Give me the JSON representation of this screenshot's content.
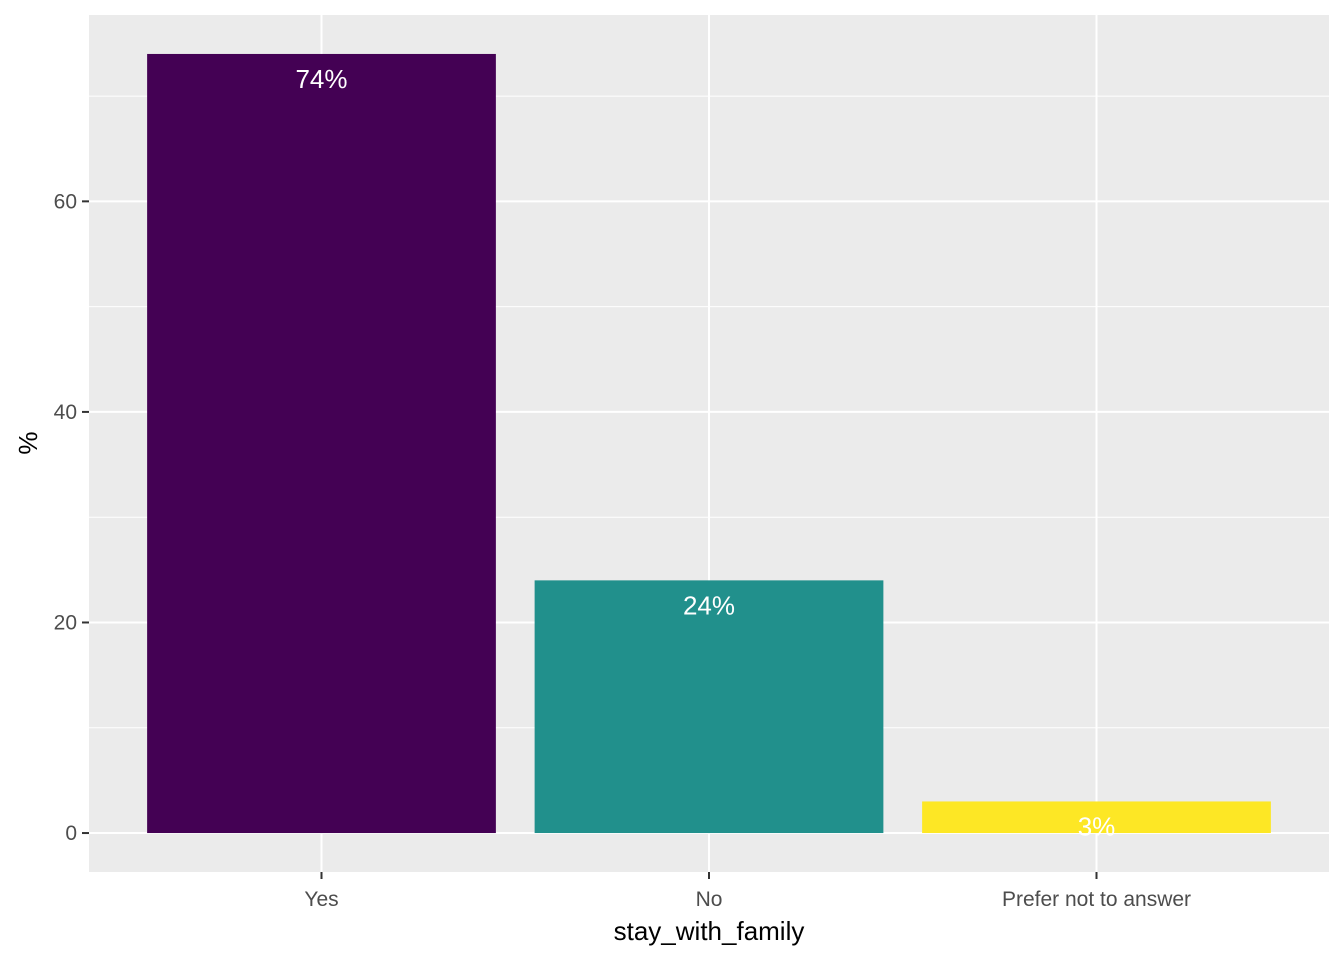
{
  "chart_data": {
    "type": "bar",
    "categories": [
      "Yes",
      "No",
      "Prefer not to answer"
    ],
    "values": [
      74,
      24,
      3
    ],
    "value_labels": [
      "74%",
      "24%",
      "3%"
    ],
    "colors": [
      "#440154",
      "#21908C",
      "#FDE725"
    ],
    "xlabel": "stay_with_family",
    "ylabel": "%",
    "ylim": [
      -3.7,
      77.7
    ],
    "y_ticks": [
      0,
      20,
      40,
      60
    ],
    "y_tick_labels": [
      "0",
      "20",
      "40",
      "60"
    ],
    "grid": true,
    "legend": "none",
    "panel_background": "#EBEBEB",
    "gridline_color": "#FFFFFF",
    "tick_color": "#333333",
    "tick_label_color": "#4D4D4D",
    "axis_title_color": "#000000",
    "data_label_color": "#FFFFFF"
  }
}
